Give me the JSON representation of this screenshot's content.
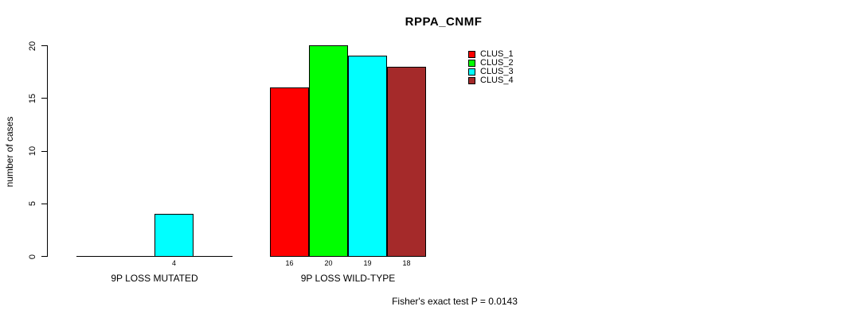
{
  "title": "RPPA_CNMF",
  "y_axis_label": "number of cases",
  "footer": "Fisher's exact test P = 0.0143",
  "colors": {
    "bar_border": "#000000",
    "background": "#ffffff",
    "text": "#000000"
  },
  "chart_data": {
    "type": "bar",
    "title": "RPPA_CNMF",
    "xlabel": "",
    "ylabel": "number of cases",
    "ylim": [
      0,
      20
    ],
    "yticks": [
      0,
      5,
      10,
      15,
      20
    ],
    "grid": false,
    "legend_position": "top-right",
    "categories": [
      "9P LOSS MUTATED",
      "9P LOSS WILD-TYPE"
    ],
    "series": [
      {
        "name": "CLUS_1",
        "color": "#FF0000",
        "values": [
          0,
          16
        ]
      },
      {
        "name": "CLUS_2",
        "color": "#00FF00",
        "values": [
          0,
          20
        ]
      },
      {
        "name": "CLUS_3",
        "color": "#00FFFF",
        "values": [
          4,
          19
        ]
      },
      {
        "name": "CLUS_4",
        "color": "#A52A2A",
        "values": [
          0,
          18
        ]
      }
    ],
    "bar_value_labels": [
      "4",
      "16",
      "20",
      "19",
      "18"
    ],
    "show_zero_value_labels": false,
    "annotation": "Fisher's exact test P = 0.0143"
  }
}
